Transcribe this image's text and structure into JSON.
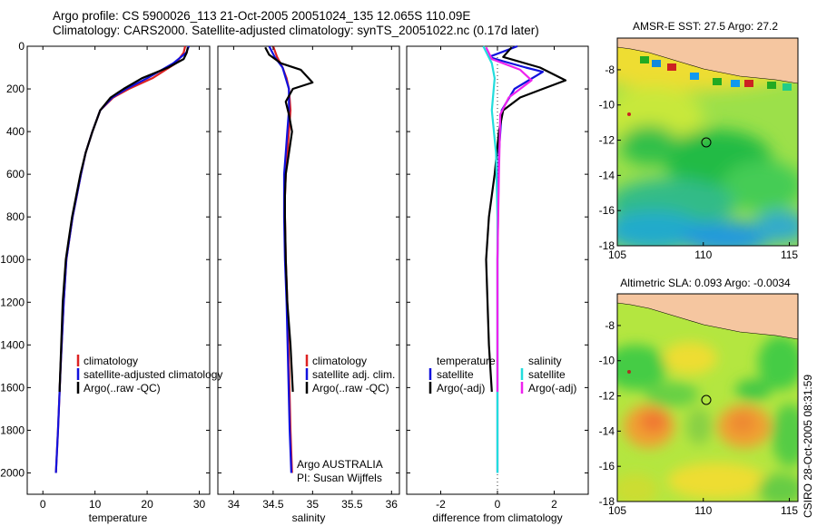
{
  "header": {
    "line1": "Argo profile: CS 5900026_113 21-Oct-2005 20051024_135 12.065S 110.09E",
    "line2": "Climatology: CARS2000. Satellite-adjusted climatology: synTS_20051022.nc (0.17d later)"
  },
  "side_stamp": "CSIRO 28-Oct-2005 08:31:59",
  "colors": {
    "climatology": "#dd2222",
    "satellite": "#1111dd",
    "argo": "#000000",
    "sat_salinity": "#22dddd",
    "argo_adj_salinity": "#ee22ee",
    "land": "#f5c6a0"
  },
  "chart_data": [
    {
      "type": "line",
      "id": "temperature",
      "xlabel": "temperature",
      "ylabel": "",
      "xlim": [
        -3,
        32
      ],
      "ylim": [
        2100,
        0
      ],
      "x_ticks": [
        0,
        10,
        20,
        30
      ],
      "y_ticks": [
        0,
        200,
        400,
        600,
        800,
        1000,
        1200,
        1400,
        1600,
        1800,
        2000
      ],
      "legend": [
        "climatology",
        "satellite-adjusted climatology",
        "Argo(..raw -QC)"
      ],
      "series": [
        {
          "name": "climatology",
          "color": "#dd2222",
          "x": [
            27.3,
            27.0,
            25.5,
            21.0,
            16.5,
            13.5,
            11.0,
            9.5,
            8.2,
            7.3,
            6.5,
            5.7,
            5.1,
            4.5,
            4.0,
            3.4,
            2.9,
            2.5
          ],
          "y": [
            0,
            30,
            80,
            150,
            200,
            240,
            300,
            400,
            500,
            600,
            700,
            800,
            900,
            1000,
            1200,
            1500,
            1800,
            2000
          ]
        },
        {
          "name": "satellite",
          "color": "#1111dd",
          "x": [
            28.0,
            27.5,
            25.0,
            20.0,
            16.0,
            13.3,
            11.0,
            9.5,
            8.2,
            7.3,
            6.5,
            5.7,
            5.1,
            4.5,
            4.0,
            3.4,
            2.9,
            2.5
          ],
          "y": [
            0,
            30,
            80,
            150,
            200,
            240,
            300,
            400,
            500,
            600,
            700,
            800,
            900,
            1000,
            1200,
            1500,
            1800,
            2000
          ]
        },
        {
          "name": "argo",
          "color": "#000000",
          "x": [
            27.8,
            27.6,
            27.0,
            24.0,
            19.0,
            15.5,
            13.0,
            11.0,
            9.5,
            8.2,
            7.2,
            6.4,
            5.6,
            5.0,
            4.4,
            3.8,
            3.2
          ],
          "y": [
            5,
            30,
            60,
            100,
            150,
            200,
            240,
            300,
            400,
            500,
            600,
            700,
            800,
            900,
            1000,
            1200,
            1620
          ]
        }
      ]
    },
    {
      "type": "line",
      "id": "salinity",
      "xlabel": "salinity",
      "ylabel": "",
      "xlim": [
        33.8,
        36.1
      ],
      "ylim": [
        2100,
        0
      ],
      "x_ticks": [
        34,
        34.5,
        35,
        35.5,
        36
      ],
      "x_tick_labels": [
        "34",
        "34.5",
        "35",
        "35.5",
        "36"
      ],
      "y_ticks": [
        0,
        200,
        400,
        600,
        800,
        1000,
        1200,
        1400,
        1600,
        1800,
        2000
      ],
      "legend": [
        "climatology",
        "satellite adj. clim.",
        "Argo(..raw -QC)"
      ],
      "annotations": [
        "Argo AUSTRALIA",
        "PI: Susan Wijffels"
      ],
      "series": [
        {
          "name": "climatology",
          "color": "#dd2222",
          "x": [
            34.5,
            34.55,
            34.62,
            34.67,
            34.7,
            34.72,
            34.7,
            34.68,
            34.66,
            34.65,
            34.65,
            34.66,
            34.68,
            34.7,
            34.72,
            34.74
          ],
          "y": [
            0,
            50,
            100,
            150,
            200,
            300,
            400,
            500,
            600,
            700,
            800,
            1000,
            1200,
            1500,
            1800,
            2000
          ]
        },
        {
          "name": "satellite",
          "color": "#1111dd",
          "x": [
            34.45,
            34.52,
            34.62,
            34.66,
            34.7,
            34.7,
            34.68,
            34.66,
            34.64,
            34.64,
            34.64,
            34.65,
            34.67,
            34.69,
            34.71,
            34.73
          ],
          "y": [
            0,
            50,
            100,
            150,
            200,
            300,
            400,
            500,
            600,
            700,
            800,
            1000,
            1200,
            1500,
            1800,
            2000
          ]
        },
        {
          "name": "argo",
          "color": "#000000",
          "x": [
            34.4,
            34.45,
            34.6,
            34.85,
            35.0,
            34.75,
            34.66,
            34.7,
            34.74,
            34.7,
            34.66,
            34.65,
            34.65,
            34.66,
            34.68,
            34.72,
            34.75
          ],
          "y": [
            5,
            40,
            80,
            110,
            170,
            200,
            260,
            320,
            400,
            500,
            600,
            700,
            800,
            1000,
            1200,
            1400,
            1620
          ]
        }
      ]
    },
    {
      "type": "line",
      "id": "difference",
      "xlabel": "difference from climatology",
      "ylabel": "",
      "xlim": [
        -3.2,
        3.2
      ],
      "ylim": [
        2100,
        0
      ],
      "x_ticks": [
        -2,
        0,
        2
      ],
      "y_ticks": [
        0,
        200,
        400,
        600,
        800,
        1000,
        1200,
        1400,
        1600,
        1800,
        2000
      ],
      "legend_groups": [
        {
          "title": "temperature",
          "items": [
            "satellite",
            "Argo(-adj)"
          ]
        },
        {
          "title": "salinity",
          "items": [
            "satellite",
            "Argo(-adj)"
          ]
        }
      ],
      "series": [
        {
          "name": "temperature satellite",
          "color": "#1111dd",
          "x": [
            0.7,
            -0.3,
            0.2,
            1.0,
            1.6,
            0.6,
            0.15,
            0.05,
            0.02,
            0.0,
            0.0,
            0.0,
            0.0
          ],
          "y": [
            0,
            50,
            70,
            100,
            120,
            200,
            300,
            500,
            800,
            1000,
            1400,
            1800,
            2000
          ]
        },
        {
          "name": "temperature argo",
          "color": "#000000",
          "x": [
            0.5,
            0.2,
            1.5,
            2.4,
            1.6,
            0.8,
            0.2,
            0.05,
            -0.1,
            -0.3,
            -0.4,
            -0.3,
            -0.2
          ],
          "y": [
            5,
            50,
            100,
            160,
            200,
            240,
            300,
            400,
            600,
            800,
            1000,
            1400,
            1620
          ]
        },
        {
          "name": "salinity satellite",
          "color": "#22dddd",
          "x": [
            -0.5,
            -0.2,
            -0.1,
            -0.2,
            -0.05,
            0.0,
            0.0,
            0.0,
            0.0
          ],
          "y": [
            0,
            80,
            150,
            300,
            500,
            800,
            1200,
            1600,
            2000
          ]
        },
        {
          "name": "salinity argo",
          "color": "#ee22ee",
          "x": [
            -0.4,
            -0.2,
            0.8,
            1.2,
            0.4,
            0.1,
            0.05,
            0.0,
            0.0
          ],
          "y": [
            5,
            60,
            110,
            160,
            240,
            320,
            600,
            1000,
            1620
          ]
        }
      ]
    },
    {
      "type": "heatmap",
      "id": "sst-map",
      "title": "AMSR-E SST: 27.5 Argo: 27.2",
      "xlim": [
        105,
        115.5
      ],
      "ylim": [
        -18,
        -6.2
      ],
      "x_ticks": [
        105,
        110,
        115
      ],
      "y_ticks": [
        -8,
        -10,
        -12,
        -14,
        -16,
        -18
      ],
      "argo_position": [
        110.09,
        -12.065
      ],
      "star_position": [
        105.6,
        -10.45
      ]
    },
    {
      "type": "heatmap",
      "id": "sla-map",
      "title": "Altimetric SLA: 0.093 Argo: -0.0034",
      "xlim": [
        105,
        115.5
      ],
      "ylim": [
        -18,
        -6.2
      ],
      "x_ticks": [
        105,
        110,
        115
      ],
      "y_ticks": [
        -8,
        -10,
        -12,
        -14,
        -16,
        -18
      ],
      "argo_position": [
        110.09,
        -12.065
      ],
      "star_position": [
        105.6,
        -10.45
      ]
    }
  ]
}
